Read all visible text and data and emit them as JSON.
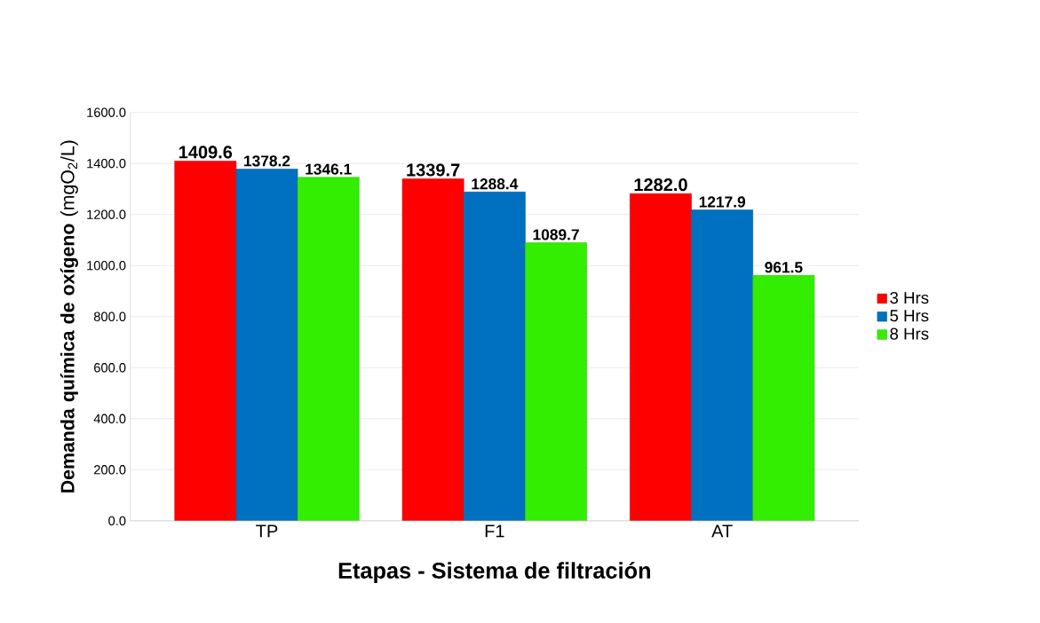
{
  "chart_data": {
    "type": "bar",
    "xlabel": "Etapas - Sistema de filtración",
    "ylabel": "**Demanda química de oxígeno** (mgO$_{2}$/L)",
    "categories": [
      "TP",
      "F1",
      "AT"
    ],
    "series": [
      {
        "name": "3 Hrs",
        "color": "#ff0000",
        "values": [
          1409.6,
          1339.7,
          1282.0
        ],
        "value_labels": [
          "1409.6",
          "1339.7",
          "1282.0"
        ]
      },
      {
        "name": "5 Hrs",
        "color": "#0070c0",
        "values": [
          1378.2,
          1288.4,
          1217.9
        ],
        "value_labels": [
          "1378.2",
          "1288.4",
          "1217.9"
        ]
      },
      {
        "name": "8 Hrs",
        "color": "#33ee00",
        "values": [
          1346.1,
          1089.7,
          961.5
        ],
        "value_labels": [
          "1346.1",
          "1089.7",
          "961.5"
        ]
      }
    ],
    "ylim": [
      0,
      1600
    ],
    "yticks": [
      {
        "value": 0,
        "label": "0.0"
      },
      {
        "value": 200,
        "label": "200.0"
      },
      {
        "value": 400,
        "label": "400.0"
      },
      {
        "value": 600,
        "label": "600.0"
      },
      {
        "value": 800,
        "label": "800.0"
      },
      {
        "value": 1000,
        "label": "1000.0"
      },
      {
        "value": 1200,
        "label": "1200.0"
      },
      {
        "value": 1400,
        "label": "1400.0"
      },
      {
        "value": 1600,
        "label": "1600.0"
      }
    ],
    "grid": "y",
    "legend": "right"
  }
}
